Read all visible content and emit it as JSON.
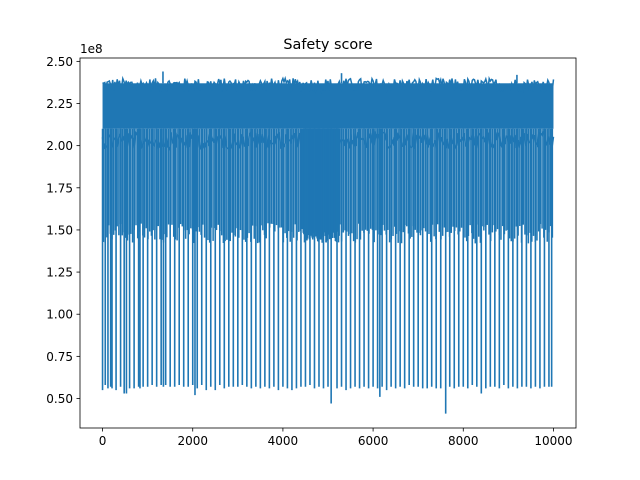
{
  "chart_data": {
    "type": "line",
    "title": "Safety score",
    "xlabel": "",
    "ylabel": "",
    "y_offset_label": "1e8",
    "xlim": [
      -500,
      10500
    ],
    "ylim": [
      0.325,
      2.52
    ],
    "x_ticks": [
      0,
      2000,
      4000,
      6000,
      8000,
      10000
    ],
    "x_tick_labels": [
      "0",
      "2000",
      "4000",
      "6000",
      "8000",
      "10000"
    ],
    "y_ticks": [
      0.5,
      0.75,
      1.0,
      1.25,
      1.5,
      1.75,
      2.0,
      2.25,
      2.5
    ],
    "y_tick_labels": [
      "0.50",
      "0.75",
      "1.00",
      "1.25",
      "1.50",
      "1.75",
      "2.00",
      "2.25",
      "2.50"
    ],
    "grid": false,
    "legend": "none",
    "series": [
      {
        "color": "#1f77b4",
        "x_range": [
          0,
          10000
        ],
        "baseline_band": [
          2.1,
          2.37
        ],
        "x": [
          0,
          60,
          120,
          180,
          210,
          300,
          400,
          480,
          530,
          600,
          700,
          800,
          830,
          900,
          1000,
          1100,
          1200,
          1300,
          1350,
          1400,
          1500,
          1600,
          1700,
          1800,
          1900,
          2000,
          2050,
          2100,
          2200,
          2300,
          2400,
          2500,
          2600,
          2700,
          2800,
          2900,
          3000,
          3100,
          3200,
          3300,
          3400,
          3500,
          3600,
          3700,
          3800,
          3900,
          4000,
          4100,
          4200,
          4300,
          4400,
          4500,
          4600,
          4700,
          4800,
          4900,
          5000,
          5070,
          5200,
          5300,
          5400,
          5500,
          5600,
          5700,
          5800,
          5900,
          6000,
          6100,
          6150,
          6200,
          6300,
          6400,
          6500,
          6600,
          6700,
          6800,
          6900,
          7000,
          7100,
          7200,
          7300,
          7400,
          7500,
          7610,
          7700,
          7800,
          7900,
          8000,
          8100,
          8200,
          8300,
          8400,
          8500,
          8600,
          8700,
          8800,
          8900,
          9000,
          9100,
          9200,
          9300,
          9400,
          9500,
          9600,
          9700,
          9800,
          9900,
          9960
        ],
        "spike_bottom": [
          0.55,
          0.58,
          0.56,
          0.57,
          0.56,
          0.55,
          0.57,
          0.53,
          0.53,
          0.56,
          0.56,
          0.57,
          0.56,
          0.57,
          0.57,
          0.58,
          0.57,
          0.58,
          0.57,
          0.58,
          0.57,
          0.57,
          0.58,
          0.57,
          0.57,
          0.58,
          0.52,
          0.56,
          0.58,
          0.55,
          0.57,
          0.55,
          0.58,
          0.56,
          0.57,
          0.57,
          0.57,
          0.58,
          0.57,
          0.56,
          0.57,
          0.56,
          0.57,
          0.56,
          0.57,
          0.55,
          0.57,
          0.56,
          0.55,
          0.56,
          0.57,
          0.57,
          0.58,
          0.56,
          0.57,
          0.56,
          0.57,
          0.47,
          0.56,
          0.57,
          0.55,
          0.56,
          0.57,
          0.56,
          0.57,
          0.56,
          0.57,
          0.56,
          0.51,
          0.57,
          0.55,
          0.57,
          0.56,
          0.57,
          0.56,
          0.58,
          0.57,
          0.57,
          0.56,
          0.56,
          0.57,
          0.56,
          0.56,
          0.41,
          0.57,
          0.56,
          0.57,
          0.57,
          0.56,
          0.58,
          0.57,
          0.53,
          0.56,
          0.57,
          0.57,
          0.56,
          0.58,
          0.56,
          0.57,
          0.56,
          0.57,
          0.57,
          0.56,
          0.57,
          0.56,
          0.57,
          0.57,
          0.57
        ],
        "peak_x": [
          1340,
          5300,
          9190
        ],
        "peak_y": [
          2.44,
          2.43,
          2.42
        ]
      }
    ]
  }
}
